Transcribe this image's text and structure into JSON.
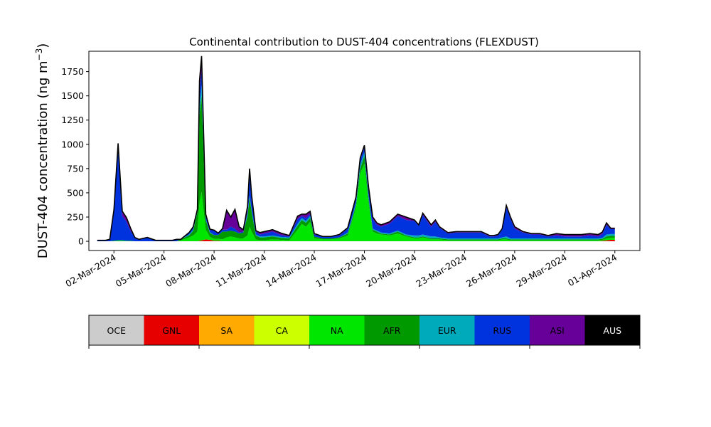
{
  "chart_data": {
    "type": "area",
    "title": "Continental contribution to DUST-404 concentrations (FLEXDUST)",
    "ylabel_main": "DUST-404 concentration (ng m",
    "ylabel_sup": "−3",
    "ylabel_close": ")",
    "xlabel": "",
    "xlim": [
      "2024-02-29T12:00",
      "2024-04-02T12:00"
    ],
    "ylim": [
      -95,
      1960
    ],
    "y_ticks": [
      0,
      250,
      500,
      750,
      1000,
      1250,
      1500,
      1750
    ],
    "x_ticks": [
      {
        "date": "2024-03-02",
        "label": "02-Mar-2024"
      },
      {
        "date": "2024-03-05",
        "label": "05-Mar-2024"
      },
      {
        "date": "2024-03-08",
        "label": "08-Mar-2024"
      },
      {
        "date": "2024-03-11",
        "label": "11-Mar-2024"
      },
      {
        "date": "2024-03-14",
        "label": "14-Mar-2024"
      },
      {
        "date": "2024-03-17",
        "label": "17-Mar-2024"
      },
      {
        "date": "2024-03-20",
        "label": "20-Mar-2024"
      },
      {
        "date": "2024-03-23",
        "label": "23-Mar-2024"
      },
      {
        "date": "2024-03-26",
        "label": "26-Mar-2024"
      },
      {
        "date": "2024-03-29",
        "label": "29-Mar-2024"
      },
      {
        "date": "2024-04-01",
        "label": "01-Apr-2024"
      }
    ],
    "x": [
      "2024-03-01T00:00",
      "2024-03-01T12:00",
      "2024-03-01T18:00",
      "2024-03-02T00:00",
      "2024-03-02T06:00",
      "2024-03-02T12:00",
      "2024-03-02T18:00",
      "2024-03-03T00:00",
      "2024-03-03T06:00",
      "2024-03-03T12:00",
      "2024-03-04T00:00",
      "2024-03-04T12:00",
      "2024-03-05T00:00",
      "2024-03-05T12:00",
      "2024-03-05T18:00",
      "2024-03-06T00:00",
      "2024-03-06T12:00",
      "2024-03-06T18:00",
      "2024-03-07T00:00",
      "2024-03-07T03:00",
      "2024-03-07T06:00",
      "2024-03-07T12:00",
      "2024-03-07T18:00",
      "2024-03-08T00:00",
      "2024-03-08T06:00",
      "2024-03-08T12:00",
      "2024-03-08T18:00",
      "2024-03-09T00:00",
      "2024-03-09T06:00",
      "2024-03-09T12:00",
      "2024-03-09T18:00",
      "2024-03-10T00:00",
      "2024-03-10T03:00",
      "2024-03-10T06:00",
      "2024-03-10T12:00",
      "2024-03-10T18:00",
      "2024-03-11T00:00",
      "2024-03-11T12:00",
      "2024-03-12T00:00",
      "2024-03-12T12:00",
      "2024-03-13T00:00",
      "2024-03-13T06:00",
      "2024-03-13T12:00",
      "2024-03-13T18:00",
      "2024-03-14T00:00",
      "2024-03-14T12:00",
      "2024-03-15T00:00",
      "2024-03-15T12:00",
      "2024-03-16T00:00",
      "2024-03-16T06:00",
      "2024-03-16T12:00",
      "2024-03-16T18:00",
      "2024-03-17T00:00",
      "2024-03-17T06:00",
      "2024-03-17T12:00",
      "2024-03-17T18:00",
      "2024-03-18T00:00",
      "2024-03-18T12:00",
      "2024-03-19T00:00",
      "2024-03-19T12:00",
      "2024-03-20T00:00",
      "2024-03-20T06:00",
      "2024-03-20T12:00",
      "2024-03-20T18:00",
      "2024-03-21T00:00",
      "2024-03-21T06:00",
      "2024-03-21T12:00",
      "2024-03-22T00:00",
      "2024-03-22T12:00",
      "2024-03-23T00:00",
      "2024-03-23T12:00",
      "2024-03-24T00:00",
      "2024-03-24T12:00",
      "2024-03-24T18:00",
      "2024-03-25T00:00",
      "2024-03-25T06:00",
      "2024-03-25T12:00",
      "2024-03-25T18:00",
      "2024-03-26T00:00",
      "2024-03-26T12:00",
      "2024-03-27T00:00",
      "2024-03-27T12:00",
      "2024-03-28T00:00",
      "2024-03-28T12:00",
      "2024-03-29T00:00",
      "2024-03-29T12:00",
      "2024-03-30T00:00",
      "2024-03-30T12:00",
      "2024-03-31T00:00",
      "2024-03-31T06:00",
      "2024-03-31T12:00",
      "2024-03-31T18:00",
      "2024-04-01T00:00"
    ],
    "series": [
      {
        "name": "OCE",
        "color": "#cccccc",
        "values": [
          0,
          0,
          0,
          0,
          0,
          0,
          0,
          0,
          0,
          0,
          0,
          0,
          0,
          0,
          0,
          0,
          0,
          0,
          0,
          0,
          0,
          0,
          0,
          0,
          0,
          0,
          0,
          0,
          0,
          0,
          0,
          0,
          0,
          0,
          0,
          0,
          0,
          0,
          0,
          0,
          0,
          0,
          0,
          0,
          0,
          0,
          0,
          0,
          0,
          0,
          0,
          0,
          0,
          0,
          0,
          0,
          0,
          0,
          0,
          0,
          0,
          0,
          0,
          0,
          0,
          0,
          0,
          0,
          0,
          0,
          0,
          0,
          0,
          0,
          0,
          0,
          0,
          0,
          0,
          0,
          0,
          0,
          0,
          0,
          0,
          0,
          0,
          0,
          0,
          0,
          0,
          0,
          0
        ]
      },
      {
        "name": "GNL",
        "color": "#e60000",
        "values": [
          0,
          0,
          0,
          0,
          0,
          0,
          0,
          0,
          0,
          0,
          0,
          0,
          0,
          0,
          0,
          0,
          0,
          0,
          0,
          5,
          10,
          20,
          15,
          5,
          5,
          0,
          0,
          0,
          0,
          0,
          0,
          0,
          0,
          0,
          0,
          0,
          0,
          0,
          0,
          0,
          0,
          0,
          0,
          0,
          0,
          0,
          0,
          0,
          0,
          0,
          0,
          0,
          0,
          0,
          0,
          0,
          0,
          0,
          0,
          0,
          0,
          0,
          0,
          0,
          0,
          0,
          0,
          0,
          0,
          0,
          0,
          0,
          0,
          0,
          0,
          0,
          0,
          0,
          0,
          0,
          0,
          0,
          0,
          0,
          0,
          0,
          0,
          0,
          0,
          5,
          10,
          15,
          15
        ]
      },
      {
        "name": "SA",
        "color": "#ffaa00",
        "values": [
          0,
          0,
          0,
          0,
          0,
          0,
          0,
          0,
          0,
          0,
          0,
          0,
          0,
          0,
          0,
          0,
          0,
          0,
          0,
          0,
          0,
          0,
          0,
          0,
          0,
          0,
          0,
          0,
          0,
          0,
          0,
          0,
          0,
          0,
          0,
          0,
          0,
          0,
          0,
          0,
          0,
          0,
          0,
          0,
          0,
          0,
          0,
          0,
          0,
          0,
          0,
          0,
          0,
          0,
          0,
          0,
          0,
          0,
          0,
          0,
          0,
          0,
          0,
          0,
          0,
          0,
          0,
          0,
          0,
          0,
          0,
          0,
          0,
          0,
          0,
          0,
          0,
          0,
          0,
          0,
          0,
          0,
          0,
          0,
          0,
          0,
          0,
          0,
          0,
          0,
          0,
          0,
          0
        ]
      },
      {
        "name": "CA",
        "color": "#ccff00",
        "values": [
          0,
          0,
          0,
          0,
          0,
          0,
          0,
          0,
          0,
          0,
          0,
          0,
          0,
          0,
          0,
          0,
          0,
          0,
          0,
          0,
          0,
          0,
          0,
          0,
          0,
          0,
          0,
          0,
          0,
          0,
          0,
          0,
          0,
          0,
          0,
          0,
          0,
          0,
          0,
          0,
          0,
          0,
          0,
          0,
          0,
          0,
          0,
          0,
          0,
          0,
          0,
          0,
          0,
          0,
          0,
          0,
          0,
          0,
          0,
          0,
          0,
          0,
          0,
          0,
          0,
          0,
          0,
          0,
          0,
          0,
          0,
          0,
          0,
          0,
          0,
          0,
          0,
          0,
          0,
          0,
          0,
          0,
          0,
          0,
          0,
          0,
          0,
          0,
          0,
          0,
          0,
          0,
          0
        ]
      },
      {
        "name": "NA",
        "color": "#00e600",
        "values": [
          0,
          0,
          0,
          5,
          10,
          10,
          5,
          5,
          0,
          0,
          0,
          0,
          0,
          0,
          0,
          10,
          40,
          60,
          100,
          400,
          500,
          100,
          30,
          20,
          20,
          20,
          40,
          50,
          40,
          30,
          30,
          60,
          150,
          100,
          20,
          10,
          10,
          20,
          15,
          10,
          120,
          180,
          150,
          200,
          30,
          20,
          20,
          30,
          60,
          200,
          350,
          700,
          800,
          400,
          100,
          80,
          70,
          60,
          80,
          50,
          30,
          30,
          40,
          30,
          20,
          20,
          20,
          10,
          10,
          10,
          10,
          10,
          10,
          10,
          10,
          20,
          20,
          10,
          10,
          10,
          10,
          10,
          10,
          10,
          10,
          10,
          10,
          10,
          10,
          10,
          20,
          20,
          20
        ]
      },
      {
        "name": "AFR",
        "color": "#009900",
        "values": [
          0,
          0,
          0,
          0,
          0,
          0,
          0,
          0,
          0,
          0,
          0,
          0,
          0,
          0,
          0,
          10,
          20,
          50,
          200,
          900,
          1000,
          100,
          40,
          40,
          40,
          80,
          60,
          60,
          60,
          50,
          60,
          200,
          300,
          200,
          40,
          30,
          30,
          30,
          20,
          20,
          40,
          40,
          40,
          40,
          20,
          10,
          10,
          10,
          20,
          20,
          30,
          50,
          80,
          40,
          20,
          20,
          10,
          10,
          20,
          10,
          10,
          10,
          10,
          10,
          10,
          10,
          10,
          10,
          10,
          10,
          10,
          10,
          10,
          10,
          10,
          10,
          10,
          10,
          10,
          10,
          10,
          10,
          10,
          10,
          10,
          10,
          10,
          10,
          10,
          10,
          20,
          20,
          20
        ]
      },
      {
        "name": "EUR",
        "color": "#00aabb",
        "values": [
          0,
          0,
          0,
          0,
          0,
          0,
          0,
          0,
          0,
          0,
          0,
          0,
          0,
          0,
          0,
          0,
          10,
          10,
          20,
          100,
          100,
          10,
          10,
          0,
          0,
          0,
          0,
          0,
          0,
          0,
          0,
          20,
          20,
          20,
          10,
          10,
          10,
          10,
          10,
          10,
          20,
          20,
          20,
          20,
          0,
          0,
          0,
          0,
          10,
          20,
          20,
          40,
          40,
          20,
          10,
          10,
          10,
          10,
          10,
          10,
          20,
          20,
          20,
          20,
          20,
          20,
          10,
          10,
          10,
          10,
          10,
          10,
          10,
          10,
          10,
          10,
          20,
          10,
          10,
          10,
          10,
          10,
          10,
          10,
          10,
          10,
          10,
          10,
          10,
          10,
          20,
          20,
          20
        ]
      },
      {
        "name": "RUS",
        "color": "#0033dd",
        "values": [
          10,
          10,
          20,
          300,
          950,
          250,
          200,
          100,
          40,
          20,
          40,
          10,
          10,
          10,
          20,
          0,
          20,
          30,
          10,
          150,
          150,
          40,
          20,
          50,
          20,
          20,
          20,
          40,
          30,
          10,
          10,
          30,
          200,
          100,
          30,
          20,
          30,
          40,
          20,
          10,
          50,
          20,
          30,
          20,
          20,
          20,
          20,
          20,
          40,
          50,
          50,
          50,
          50,
          80,
          100,
          60,
          60,
          100,
          150,
          150,
          150,
          100,
          200,
          150,
          100,
          150,
          100,
          50,
          60,
          60,
          60,
          60,
          20,
          20,
          30,
          80,
          300,
          200,
          100,
          60,
          40,
          40,
          20,
          30,
          20,
          20,
          20,
          30,
          20,
          40,
          100,
          50,
          50
        ]
      },
      {
        "name": "ASI",
        "color": "#660099",
        "values": [
          0,
          0,
          0,
          20,
          50,
          50,
          40,
          30,
          0,
          0,
          0,
          0,
          0,
          0,
          0,
          0,
          0,
          0,
          0,
          100,
          150,
          10,
          10,
          0,
          0,
          10,
          200,
          100,
          200,
          60,
          20,
          50,
          80,
          50,
          10,
          20,
          20,
          20,
          20,
          10,
          30,
          20,
          40,
          30,
          10,
          0,
          0,
          10,
          10,
          10,
          10,
          20,
          20,
          20,
          20,
          20,
          20,
          20,
          20,
          30,
          10,
          10,
          20,
          20,
          20,
          20,
          10,
          10,
          10,
          10,
          10,
          10,
          10,
          10,
          10,
          10,
          20,
          20,
          20,
          10,
          10,
          10,
          10,
          20,
          20,
          20,
          20,
          20,
          20,
          20,
          20,
          10,
          10
        ]
      },
      {
        "name": "AUS",
        "color": "#000000",
        "values": [
          0,
          0,
          0,
          0,
          0,
          0,
          0,
          0,
          0,
          0,
          0,
          0,
          0,
          0,
          0,
          0,
          0,
          0,
          0,
          0,
          0,
          0,
          0,
          0,
          0,
          0,
          0,
          0,
          0,
          0,
          0,
          0,
          0,
          0,
          0,
          0,
          0,
          0,
          0,
          0,
          0,
          0,
          0,
          0,
          0,
          0,
          0,
          0,
          0,
          0,
          0,
          0,
          0,
          0,
          0,
          0,
          0,
          0,
          0,
          0,
          0,
          0,
          0,
          0,
          0,
          0,
          0,
          0,
          0,
          0,
          0,
          0,
          0,
          0,
          0,
          0,
          0,
          0,
          0,
          0,
          0,
          0,
          0,
          0,
          0,
          0,
          0,
          0,
          0,
          0,
          0,
          0,
          0
        ]
      }
    ],
    "legend": {
      "placement": "bottom-colorbar"
    }
  }
}
